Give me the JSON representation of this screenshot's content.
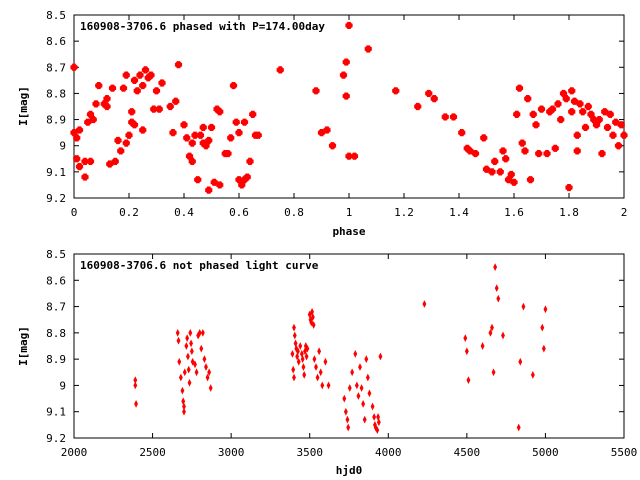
{
  "chart_data": [
    {
      "type": "scatter",
      "title": "160908-3706.6 phased with P=174.00day",
      "xlabel": "phase",
      "ylabel": "I[mag]",
      "xlim": [
        0,
        2
      ],
      "ylim": [
        9.2,
        8.5
      ],
      "y_inverted": true,
      "xticks": [
        "0",
        "0.2",
        "0.4",
        "0.6",
        "0.8",
        "1",
        "1.2",
        "1.4",
        "1.6",
        "1.8",
        "2"
      ],
      "yticks": [
        "8.5",
        "8.6",
        "8.7",
        "8.8",
        "8.9",
        "9",
        "9.1",
        "9.2"
      ],
      "marker_color": "#ff0000",
      "grid": false,
      "points": [
        [
          0.0,
          8.7
        ],
        [
          0.0,
          8.95
        ],
        [
          0.01,
          8.97
        ],
        [
          0.01,
          9.05
        ],
        [
          0.02,
          8.94
        ],
        [
          0.02,
          9.08
        ],
        [
          0.04,
          9.06
        ],
        [
          0.04,
          9.12
        ],
        [
          0.05,
          8.91
        ],
        [
          0.06,
          8.88
        ],
        [
          0.06,
          9.06
        ],
        [
          0.07,
          8.9
        ],
        [
          0.08,
          8.84
        ],
        [
          0.09,
          8.77
        ],
        [
          0.11,
          8.84
        ],
        [
          0.12,
          8.85
        ],
        [
          0.12,
          8.82
        ],
        [
          0.13,
          9.07
        ],
        [
          0.14,
          8.78
        ],
        [
          0.15,
          9.06
        ],
        [
          0.16,
          8.98
        ],
        [
          0.17,
          9.02
        ],
        [
          0.18,
          8.78
        ],
        [
          0.19,
          8.73
        ],
        [
          0.19,
          8.99
        ],
        [
          0.2,
          8.96
        ],
        [
          0.21,
          8.87
        ],
        [
          0.21,
          8.91
        ],
        [
          0.22,
          8.75
        ],
        [
          0.22,
          8.92
        ],
        [
          0.23,
          8.79
        ],
        [
          0.24,
          8.73
        ],
        [
          0.25,
          8.77
        ],
        [
          0.25,
          8.94
        ],
        [
          0.26,
          8.71
        ],
        [
          0.27,
          8.74
        ],
        [
          0.28,
          8.73
        ],
        [
          0.29,
          8.86
        ],
        [
          0.3,
          8.79
        ],
        [
          0.31,
          8.86
        ],
        [
          0.32,
          8.76
        ],
        [
          0.35,
          8.85
        ],
        [
          0.36,
          8.95
        ],
        [
          0.37,
          8.83
        ],
        [
          0.38,
          8.69
        ],
        [
          0.4,
          8.92
        ],
        [
          0.41,
          8.97
        ],
        [
          0.42,
          9.04
        ],
        [
          0.43,
          9.06
        ],
        [
          0.43,
          8.99
        ],
        [
          0.44,
          8.96
        ],
        [
          0.45,
          9.13
        ],
        [
          0.46,
          8.96
        ],
        [
          0.47,
          8.99
        ],
        [
          0.47,
          8.93
        ],
        [
          0.48,
          9.0
        ],
        [
          0.49,
          8.98
        ],
        [
          0.49,
          9.17
        ],
        [
          0.5,
          8.93
        ],
        [
          0.51,
          9.14
        ],
        [
          0.52,
          8.86
        ],
        [
          0.53,
          8.87
        ],
        [
          0.53,
          9.15
        ],
        [
          0.55,
          9.03
        ],
        [
          0.56,
          9.03
        ],
        [
          0.57,
          8.97
        ],
        [
          0.58,
          8.77
        ],
        [
          0.59,
          8.91
        ],
        [
          0.6,
          8.95
        ],
        [
          0.6,
          9.13
        ],
        [
          0.61,
          9.15
        ],
        [
          0.62,
          9.13
        ],
        [
          0.62,
          8.91
        ],
        [
          0.63,
          9.12
        ],
        [
          0.64,
          9.06
        ],
        [
          0.65,
          8.88
        ],
        [
          0.66,
          8.96
        ],
        [
          0.67,
          8.96
        ],
        [
          0.75,
          8.71
        ],
        [
          0.88,
          8.79
        ],
        [
          0.9,
          8.95
        ],
        [
          0.92,
          8.94
        ],
        [
          0.94,
          9.0
        ],
        [
          0.98,
          8.73
        ],
        [
          0.99,
          8.68
        ],
        [
          0.99,
          8.81
        ],
        [
          1.0,
          9.04
        ],
        [
          1.0,
          8.54
        ],
        [
          1.02,
          9.04
        ],
        [
          1.07,
          8.63
        ],
        [
          1.17,
          8.79
        ],
        [
          1.25,
          8.85
        ],
        [
          1.29,
          8.8
        ],
        [
          1.31,
          8.82
        ],
        [
          1.35,
          8.89
        ],
        [
          1.38,
          8.89
        ],
        [
          1.41,
          8.95
        ],
        [
          1.43,
          9.01
        ],
        [
          1.44,
          9.02
        ],
        [
          1.46,
          9.03
        ],
        [
          1.49,
          8.97
        ],
        [
          1.5,
          9.09
        ],
        [
          1.52,
          9.1
        ],
        [
          1.53,
          9.06
        ],
        [
          1.55,
          9.1
        ],
        [
          1.56,
          9.02
        ],
        [
          1.57,
          9.05
        ],
        [
          1.58,
          9.13
        ],
        [
          1.59,
          9.11
        ],
        [
          1.6,
          9.14
        ],
        [
          1.61,
          8.88
        ],
        [
          1.62,
          8.78
        ],
        [
          1.63,
          8.99
        ],
        [
          1.64,
          9.02
        ],
        [
          1.65,
          8.82
        ],
        [
          1.66,
          9.13
        ],
        [
          1.67,
          8.88
        ],
        [
          1.68,
          8.92
        ],
        [
          1.69,
          9.03
        ],
        [
          1.7,
          8.86
        ],
        [
          1.72,
          9.03
        ],
        [
          1.73,
          8.87
        ],
        [
          1.74,
          8.86
        ],
        [
          1.75,
          9.01
        ],
        [
          1.76,
          8.84
        ],
        [
          1.77,
          8.9
        ],
        [
          1.78,
          8.8
        ],
        [
          1.79,
          8.82
        ],
        [
          1.8,
          9.16
        ],
        [
          1.81,
          8.87
        ],
        [
          1.81,
          8.79
        ],
        [
          1.82,
          8.83
        ],
        [
          1.83,
          8.96
        ],
        [
          1.83,
          9.02
        ],
        [
          1.84,
          8.84
        ],
        [
          1.85,
          8.87
        ],
        [
          1.86,
          8.93
        ],
        [
          1.87,
          8.85
        ],
        [
          1.88,
          8.88
        ],
        [
          1.89,
          8.9
        ],
        [
          1.9,
          8.92
        ],
        [
          1.91,
          8.9
        ],
        [
          1.92,
          9.03
        ],
        [
          1.93,
          8.87
        ],
        [
          1.94,
          8.93
        ],
        [
          1.95,
          8.88
        ],
        [
          1.96,
          8.96
        ],
        [
          1.97,
          8.91
        ],
        [
          1.98,
          9.0
        ],
        [
          1.99,
          8.92
        ],
        [
          2.0,
          8.96
        ]
      ]
    },
    {
      "type": "scatter",
      "title": "160908-3706.6 not phased light curve",
      "xlabel": "hjd0",
      "ylabel": "I[mag]",
      "xlim": [
        2000,
        5500
      ],
      "ylim": [
        9.2,
        8.5
      ],
      "y_inverted": true,
      "xticks": [
        "2000",
        "2500",
        "3000",
        "3500",
        "4000",
        "4500",
        "5000",
        "5500"
      ],
      "yticks": [
        "8.5",
        "8.6",
        "8.7",
        "8.8",
        "8.9",
        "9",
        "9.1",
        "9.2"
      ],
      "marker_color": "#ff0000",
      "grid": false,
      "points": [
        [
          2390,
          8.98
        ],
        [
          2390,
          9.0
        ],
        [
          2395,
          9.07
        ],
        [
          2660,
          8.8
        ],
        [
          2665,
          8.83
        ],
        [
          2670,
          8.91
        ],
        [
          2680,
          8.97
        ],
        [
          2690,
          9.02
        ],
        [
          2695,
          9.06
        ],
        [
          2700,
          9.08
        ],
        [
          2700,
          9.1
        ],
        [
          2705,
          8.95
        ],
        [
          2715,
          8.85
        ],
        [
          2720,
          8.82
        ],
        [
          2725,
          8.89
        ],
        [
          2730,
          8.94
        ],
        [
          2735,
          8.99
        ],
        [
          2740,
          8.8
        ],
        [
          2745,
          8.84
        ],
        [
          2750,
          8.87
        ],
        [
          2755,
          8.91
        ],
        [
          2770,
          8.92
        ],
        [
          2780,
          8.95
        ],
        [
          2790,
          8.81
        ],
        [
          2800,
          8.8
        ],
        [
          2810,
          8.86
        ],
        [
          2820,
          8.8
        ],
        [
          2830,
          8.9
        ],
        [
          2840,
          8.93
        ],
        [
          2850,
          8.97
        ],
        [
          2860,
          8.95
        ],
        [
          2870,
          9.01
        ],
        [
          3390,
          8.88
        ],
        [
          3395,
          8.94
        ],
        [
          3400,
          8.97
        ],
        [
          3400,
          8.78
        ],
        [
          3405,
          8.81
        ],
        [
          3410,
          8.84
        ],
        [
          3415,
          8.86
        ],
        [
          3420,
          8.89
        ],
        [
          3425,
          8.87
        ],
        [
          3430,
          8.91
        ],
        [
          3440,
          8.85
        ],
        [
          3450,
          8.88
        ],
        [
          3455,
          8.9
        ],
        [
          3460,
          8.93
        ],
        [
          3465,
          8.96
        ],
        [
          3470,
          8.87
        ],
        [
          3475,
          8.85
        ],
        [
          3480,
          8.89
        ],
        [
          3485,
          8.86
        ],
        [
          3500,
          8.73
        ],
        [
          3505,
          8.75
        ],
        [
          3510,
          8.76
        ],
        [
          3515,
          8.72
        ],
        [
          3520,
          8.74
        ],
        [
          3525,
          8.77
        ],
        [
          3530,
          8.9
        ],
        [
          3540,
          8.93
        ],
        [
          3550,
          8.97
        ],
        [
          3560,
          8.87
        ],
        [
          3570,
          8.95
        ],
        [
          3580,
          9.0
        ],
        [
          3600,
          8.91
        ],
        [
          3620,
          9.0
        ],
        [
          3720,
          9.05
        ],
        [
          3730,
          9.1
        ],
        [
          3740,
          9.13
        ],
        [
          3745,
          9.16
        ],
        [
          3755,
          9.01
        ],
        [
          3770,
          8.95
        ],
        [
          3790,
          8.88
        ],
        [
          3800,
          9.0
        ],
        [
          3810,
          9.04
        ],
        [
          3820,
          8.93
        ],
        [
          3830,
          9.01
        ],
        [
          3840,
          9.07
        ],
        [
          3850,
          9.13
        ],
        [
          3860,
          8.9
        ],
        [
          3870,
          8.97
        ],
        [
          3880,
          9.03
        ],
        [
          3900,
          9.08
        ],
        [
          3910,
          9.12
        ],
        [
          3915,
          9.15
        ],
        [
          3920,
          9.16
        ],
        [
          3930,
          9.17
        ],
        [
          3935,
          9.12
        ],
        [
          3940,
          9.14
        ],
        [
          3950,
          8.89
        ],
        [
          4230,
          8.69
        ],
        [
          4490,
          8.82
        ],
        [
          4500,
          8.87
        ],
        [
          4510,
          8.98
        ],
        [
          4600,
          8.85
        ],
        [
          4650,
          8.8
        ],
        [
          4660,
          8.78
        ],
        [
          4670,
          8.95
        ],
        [
          4680,
          8.55
        ],
        [
          4690,
          8.63
        ],
        [
          4700,
          8.67
        ],
        [
          4730,
          8.81
        ],
        [
          4830,
          9.16
        ],
        [
          4840,
          8.91
        ],
        [
          4860,
          8.7
        ],
        [
          4920,
          8.96
        ],
        [
          4980,
          8.78
        ],
        [
          4990,
          8.86
        ],
        [
          5000,
          8.71
        ]
      ]
    }
  ]
}
